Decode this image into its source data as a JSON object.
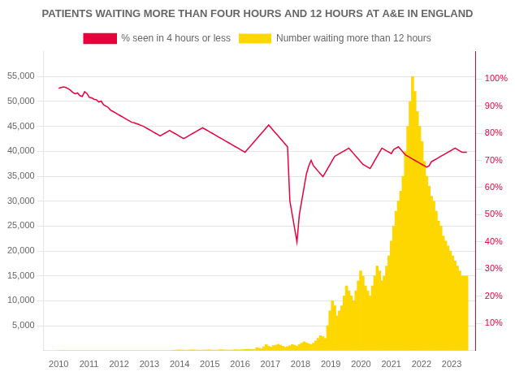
{
  "chart_data": {
    "type": "bar",
    "title": "PATIENTS WAITING MORE THAN FOUR HOURS AND 12 HOURS AT A&E IN ENGLAND",
    "x": [
      2010,
      2010.078,
      2010.1561,
      2010.2341,
      2010.3121,
      2010.3902,
      2010.4682,
      2010.5462,
      2010.6243,
      2010.7023,
      2010.7803,
      2010.8584,
      2010.9364,
      2011.0145,
      2011.0925,
      2011.1705,
      2011.2486,
      2011.3266,
      2011.4046,
      2011.4827,
      2011.5607,
      2011.6387,
      2011.7168,
      2011.7948,
      2011.8728,
      2011.9509,
      2012.0289,
      2012.1069,
      2012.185,
      2012.263,
      2012.341,
      2012.4191,
      2012.4971,
      2012.5751,
      2012.6532,
      2012.7312,
      2012.8092,
      2012.8873,
      2012.9653,
      2013.0434,
      2013.1214,
      2013.1994,
      2013.2775,
      2013.3555,
      2013.4335,
      2013.5116,
      2013.5896,
      2013.6676,
      2013.7457,
      2013.8237,
      2013.9017,
      2013.9798,
      2014.0578,
      2014.1358,
      2014.2139,
      2014.2919,
      2014.3699,
      2014.448,
      2014.526,
      2014.604,
      2014.6821,
      2014.7601,
      2014.8382,
      2014.9162,
      2014.9942,
      2015.0723,
      2015.1503,
      2015.2283,
      2015.3064,
      2015.3844,
      2015.4624,
      2015.5405,
      2015.6185,
      2015.6965,
      2015.7746,
      2015.8526,
      2015.9306,
      2016.0087,
      2016.0867,
      2016.1647,
      2016.2428,
      2016.3208,
      2016.3988,
      2016.4769,
      2016.5549,
      2016.6329,
      2016.711,
      2016.789,
      2016.8671,
      2016.9451,
      2017.0231,
      2017.1012,
      2017.1792,
      2017.2572,
      2017.3353,
      2017.4133,
      2017.4913,
      2017.5694,
      2017.6474,
      2017.7254,
      2017.8035,
      2017.8815,
      2017.9595,
      2018.0376,
      2018.1156,
      2018.1936,
      2018.2717,
      2018.3497,
      2018.4277,
      2018.5058,
      2018.5838,
      2018.6618,
      2018.7399,
      2018.8179,
      2018.896,
      2018.974,
      2019.052,
      2019.1301,
      2019.2081,
      2019.2861,
      2019.3642,
      2019.4422,
      2019.5202,
      2019.5983,
      2019.6763,
      2019.7543,
      2019.8324,
      2019.9104,
      2019.9884,
      2020.0665,
      2020.1445,
      2020.2225,
      2020.3006,
      2020.3786,
      2020.4566,
      2020.5347,
      2020.6127,
      2020.6908,
      2020.7688,
      2020.8468,
      2020.9249,
      2021.0029,
      2021.0809,
      2021.159,
      2021.237,
      2021.315,
      2021.3931,
      2021.4711,
      2021.5491,
      2021.6272,
      2021.7052,
      2021.7832,
      2021.8613,
      2021.9393,
      2022.0173,
      2022.0954,
      2022.1734,
      2022.2514,
      2022.3295,
      2022.4075,
      2022.4855,
      2022.5636,
      2022.6416,
      2022.7197,
      2022.7977,
      2022.8757,
      2022.9538,
      2023.0318,
      2023.1098,
      2023.1879,
      2023.2659,
      2023.3439,
      2023.422,
      2023.5
    ],
    "xlim": [
      2009.5,
      2023.8
    ],
    "xticks": [
      2010,
      2011,
      2012,
      2013,
      2014,
      2015,
      2016,
      2017,
      2018,
      2019,
      2020,
      2021,
      2022,
      2023
    ],
    "ylim": [
      0,
      60000
    ],
    "yticks": [
      {
        "value": 5000,
        "label": "5,000"
      },
      {
        "value": 10000,
        "label": "10,000"
      },
      {
        "value": 15000,
        "label": "15,000"
      },
      {
        "value": 20000,
        "label": "20,000"
      },
      {
        "value": 25000,
        "label": "25,000"
      },
      {
        "value": 30000,
        "label": "30,000"
      },
      {
        "value": 35000,
        "label": "35,000"
      },
      {
        "value": 40000,
        "label": "40,000"
      },
      {
        "value": 45000,
        "label": "45,000"
      },
      {
        "value": 50000,
        "label": "50,000"
      },
      {
        "value": 55000,
        "label": "55,000"
      }
    ],
    "y2lim": [
      0,
      110
    ],
    "y2ticks": [
      {
        "value": 10,
        "label": "10%"
      },
      {
        "value": 20,
        "label": "20%"
      },
      {
        "value": 30,
        "label": "30%"
      },
      {
        "value": 40,
        "label": "40%"
      },
      {
        "value": 50,
        "label": "50%"
      },
      {
        "value": 60,
        "label": "60%"
      },
      {
        "value": 70,
        "label": "70%"
      },
      {
        "value": 80,
        "label": "80%"
      },
      {
        "value": 90,
        "label": "90%"
      },
      {
        "value": 100,
        "label": "100%"
      }
    ],
    "grid": true,
    "legend": "top",
    "series": [
      {
        "name": "% seen in 4 hours or less",
        "type": "line",
        "axis": "y2",
        "color": "#e8003d",
        "values": [
          96.5,
          96.8,
          97.0,
          96.8,
          96.4,
          95.8,
          95.0,
          94.5,
          94.8,
          93.8,
          93.5,
          95.3,
          94.6,
          93.2,
          93.0,
          92.5,
          92.3,
          91.5,
          91.8,
          90.5,
          90.0,
          89.5,
          88.5,
          88.0,
          87.5,
          87.0,
          86.5,
          86.0,
          85.5,
          85.0,
          84.5,
          84.0,
          83.8,
          83.5,
          83.2,
          82.8,
          82.5,
          82.0,
          81.5,
          81.0,
          80.5,
          80.0,
          79.5,
          79.0,
          79.5,
          80.0,
          80.5,
          81.0,
          80.5,
          80.0,
          79.5,
          79.0,
          78.5,
          78.0,
          78.5,
          79.0,
          79.5,
          80.0,
          80.5,
          81.0,
          81.5,
          82.0,
          81.5,
          81.0,
          80.5,
          80.0,
          79.5,
          79.0,
          78.5,
          78.0,
          77.5,
          77.0,
          76.5,
          76.0,
          75.5,
          75.0,
          74.5,
          74.0,
          73.5,
          73.0,
          74.0,
          75.0,
          76.0,
          77.0,
          78.0,
          79.0,
          80.0,
          81.0,
          82.0,
          83.0,
          82.0,
          81.0,
          80.0,
          79.0,
          78.0,
          77.0,
          76.0,
          75.0,
          55.0,
          50.0,
          45.0,
          40.0,
          50.0,
          55.0,
          60.0,
          65.0,
          68.0,
          70.0,
          68.0,
          67.0,
          66.0,
          65.0,
          64.0,
          65.5,
          67.0,
          68.5,
          70.0,
          71.5,
          72.0,
          72.5,
          73.0,
          73.5,
          74.0,
          74.5,
          73.5,
          72.5,
          71.5,
          70.5,
          69.5,
          68.5,
          68.0,
          67.5,
          67.0,
          68.5,
          70.0,
          71.5,
          73.0,
          74.5,
          74.0,
          73.5,
          73.0,
          72.5,
          74.0,
          74.5,
          75.0,
          74.0,
          73.0,
          72.0,
          71.5,
          71.0,
          70.5,
          70.0,
          69.5,
          69.0,
          68.5,
          68.0,
          67.5,
          68.0,
          69.5,
          70.0,
          70.5,
          71.0,
          71.5,
          72.0,
          72.5,
          73.0,
          73.5,
          74.0,
          74.5,
          74.0,
          73.5,
          73.0,
          73.0,
          73.0
        ]
      },
      {
        "name": "Number waiting more than 12 hours",
        "type": "bar",
        "axis": "y",
        "color": "#FFD700",
        "values": [
          0,
          0,
          0,
          0,
          0,
          0,
          0,
          0,
          0,
          0,
          0,
          0,
          0,
          0,
          0,
          0,
          0,
          0,
          0,
          0,
          0,
          0,
          0,
          0,
          0,
          0,
          0,
          0,
          0,
          0,
          0,
          0,
          0,
          0,
          0,
          0,
          0,
          0,
          0,
          0,
          0,
          0,
          0,
          0,
          0,
          0,
          0,
          0,
          50,
          80,
          120,
          150,
          130,
          100,
          80,
          110,
          140,
          160,
          130,
          100,
          90,
          110,
          130,
          150,
          140,
          120,
          100,
          130,
          160,
          180,
          150,
          120,
          100,
          130,
          160,
          190,
          170,
          140,
          200,
          250,
          300,
          270,
          230,
          200,
          600,
          500,
          400,
          800,
          1200,
          900,
          700,
          1000,
          1100,
          1300,
          1100,
          900,
          700,
          800,
          1000,
          1200,
          1100,
          900,
          1200,
          1500,
          1800,
          1600,
          1400,
          1200,
          1500,
          2000,
          2500,
          3000,
          2800,
          2500,
          5000,
          8000,
          10000,
          9000,
          7000,
          8000,
          9000,
          11000,
          13000,
          12000,
          11000,
          10000,
          12000,
          14000,
          16000,
          15000,
          13000,
          12000,
          11000,
          13000,
          15000,
          17000,
          16000,
          14000,
          15000,
          17000,
          19000,
          22000,
          25000,
          28000,
          30000,
          32000,
          35000,
          40000,
          45000,
          50000,
          55000,
          52000,
          48000,
          45000,
          42000,
          38000,
          35000,
          33000,
          31000,
          30000,
          28000,
          26000,
          25000,
          23000,
          22000,
          21000,
          20000,
          19000,
          18000,
          17000,
          16000,
          15000,
          15000,
          15000
        ]
      }
    ]
  }
}
